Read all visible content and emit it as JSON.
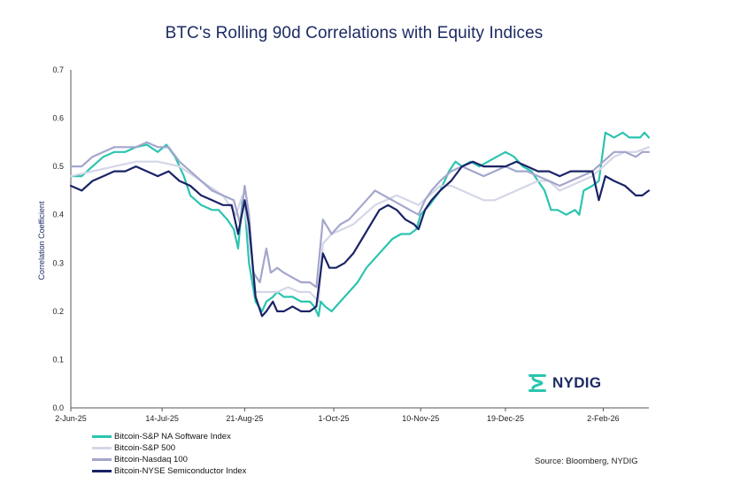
{
  "chart_data": {
    "type": "line",
    "title": "BTC's Rolling 90d Correlations with Equity Indices",
    "ylabel": "Correlation Coefficient",
    "xlabel": "",
    "ylim": [
      0,
      0.7
    ],
    "yticks": [
      "0.0",
      "0.1",
      "0.2",
      "0.3",
      "0.4",
      "0.5",
      "0.6",
      "0.7"
    ],
    "xlim": [
      0,
      266
    ],
    "xticks": [
      {
        "label": "2-Jun-25",
        "day": 0
      },
      {
        "label": "14-Jul-25",
        "day": 42
      },
      {
        "label": "21-Aug-25",
        "day": 80
      },
      {
        "label": "1-Oct-25",
        "day": 121
      },
      {
        "label": "10-Nov-25",
        "day": 161
      },
      {
        "label": "19-Dec-25",
        "day": 200
      },
      {
        "label": "2-Feb-26",
        "day": 245
      }
    ],
    "grid": false,
    "legend_position": "bottom-left",
    "source": "Source: Bloomberg, NYDIG",
    "logo_text": "NYDIG",
    "series": [
      {
        "name": "Bitcoin-S&P NA Software Index",
        "color": "#2bc4b0",
        "points": [
          [
            0,
            0.48
          ],
          [
            5,
            0.48
          ],
          [
            10,
            0.5
          ],
          [
            15,
            0.52
          ],
          [
            20,
            0.53
          ],
          [
            25,
            0.53
          ],
          [
            30,
            0.54
          ],
          [
            35,
            0.545
          ],
          [
            40,
            0.53
          ],
          [
            44,
            0.545
          ],
          [
            48,
            0.52
          ],
          [
            52,
            0.48
          ],
          [
            55,
            0.44
          ],
          [
            60,
            0.42
          ],
          [
            65,
            0.41
          ],
          [
            68,
            0.41
          ],
          [
            72,
            0.39
          ],
          [
            75,
            0.37
          ],
          [
            77,
            0.33
          ],
          [
            79,
            0.43
          ],
          [
            80,
            0.42
          ],
          [
            82,
            0.3
          ],
          [
            85,
            0.22
          ],
          [
            88,
            0.2
          ],
          [
            90,
            0.22
          ],
          [
            93,
            0.23
          ],
          [
            95,
            0.24
          ],
          [
            98,
            0.23
          ],
          [
            102,
            0.23
          ],
          [
            106,
            0.22
          ],
          [
            110,
            0.22
          ],
          [
            112,
            0.21
          ],
          [
            114,
            0.19
          ],
          [
            115,
            0.22
          ],
          [
            117,
            0.21
          ],
          [
            120,
            0.2
          ],
          [
            124,
            0.22
          ],
          [
            128,
            0.24
          ],
          [
            132,
            0.26
          ],
          [
            136,
            0.29
          ],
          [
            140,
            0.31
          ],
          [
            144,
            0.33
          ],
          [
            148,
            0.35
          ],
          [
            152,
            0.36
          ],
          [
            156,
            0.36
          ],
          [
            159,
            0.37
          ],
          [
            161,
            0.4
          ],
          [
            165,
            0.42
          ],
          [
            170,
            0.45
          ],
          [
            174,
            0.49
          ],
          [
            177,
            0.51
          ],
          [
            180,
            0.5
          ],
          [
            184,
            0.51
          ],
          [
            188,
            0.5
          ],
          [
            192,
            0.51
          ],
          [
            196,
            0.52
          ],
          [
            200,
            0.53
          ],
          [
            204,
            0.52
          ],
          [
            208,
            0.5
          ],
          [
            212,
            0.49
          ],
          [
            215,
            0.47
          ],
          [
            218,
            0.45
          ],
          [
            221,
            0.41
          ],
          [
            224,
            0.41
          ],
          [
            228,
            0.4
          ],
          [
            232,
            0.41
          ],
          [
            234,
            0.4
          ],
          [
            236,
            0.45
          ],
          [
            240,
            0.46
          ],
          [
            243,
            0.47
          ],
          [
            246,
            0.57
          ],
          [
            250,
            0.56
          ],
          [
            254,
            0.57
          ],
          [
            257,
            0.56
          ],
          [
            260,
            0.56
          ],
          [
            262,
            0.56
          ],
          [
            264,
            0.57
          ],
          [
            266,
            0.56
          ]
        ]
      },
      {
        "name": "Bitcoin-S&P 500",
        "color": "#d4d6e8",
        "points": [
          [
            0,
            0.48
          ],
          [
            10,
            0.49
          ],
          [
            20,
            0.5
          ],
          [
            30,
            0.51
          ],
          [
            40,
            0.51
          ],
          [
            50,
            0.5
          ],
          [
            60,
            0.47
          ],
          [
            70,
            0.44
          ],
          [
            76,
            0.4
          ],
          [
            79,
            0.44
          ],
          [
            82,
            0.36
          ],
          [
            85,
            0.24
          ],
          [
            90,
            0.24
          ],
          [
            95,
            0.24
          ],
          [
            100,
            0.25
          ],
          [
            105,
            0.24
          ],
          [
            110,
            0.24
          ],
          [
            114,
            0.22
          ],
          [
            116,
            0.34
          ],
          [
            120,
            0.36
          ],
          [
            125,
            0.37
          ],
          [
            130,
            0.38
          ],
          [
            135,
            0.4
          ],
          [
            140,
            0.42
          ],
          [
            145,
            0.43
          ],
          [
            150,
            0.44
          ],
          [
            155,
            0.43
          ],
          [
            160,
            0.42
          ],
          [
            165,
            0.44
          ],
          [
            170,
            0.46
          ],
          [
            175,
            0.46
          ],
          [
            180,
            0.45
          ],
          [
            185,
            0.44
          ],
          [
            190,
            0.43
          ],
          [
            195,
            0.43
          ],
          [
            200,
            0.44
          ],
          [
            205,
            0.45
          ],
          [
            210,
            0.46
          ],
          [
            215,
            0.47
          ],
          [
            220,
            0.47
          ],
          [
            225,
            0.45
          ],
          [
            230,
            0.46
          ],
          [
            235,
            0.47
          ],
          [
            240,
            0.48
          ],
          [
            245,
            0.5
          ],
          [
            250,
            0.52
          ],
          [
            255,
            0.53
          ],
          [
            260,
            0.53
          ],
          [
            266,
            0.54
          ]
        ]
      },
      {
        "name": "Bitcoin-Nasdaq 100",
        "color": "#a3a6cc",
        "points": [
          [
            0,
            0.5
          ],
          [
            5,
            0.5
          ],
          [
            10,
            0.52
          ],
          [
            15,
            0.53
          ],
          [
            20,
            0.54
          ],
          [
            25,
            0.54
          ],
          [
            30,
            0.54
          ],
          [
            35,
            0.55
          ],
          [
            40,
            0.54
          ],
          [
            45,
            0.54
          ],
          [
            50,
            0.51
          ],
          [
            55,
            0.49
          ],
          [
            60,
            0.47
          ],
          [
            65,
            0.45
          ],
          [
            70,
            0.44
          ],
          [
            75,
            0.43
          ],
          [
            78,
            0.38
          ],
          [
            80,
            0.46
          ],
          [
            82,
            0.4
          ],
          [
            84,
            0.28
          ],
          [
            87,
            0.26
          ],
          [
            90,
            0.33
          ],
          [
            92,
            0.28
          ],
          [
            95,
            0.29
          ],
          [
            98,
            0.28
          ],
          [
            102,
            0.27
          ],
          [
            106,
            0.26
          ],
          [
            110,
            0.26
          ],
          [
            113,
            0.25
          ],
          [
            116,
            0.39
          ],
          [
            120,
            0.36
          ],
          [
            124,
            0.38
          ],
          [
            128,
            0.39
          ],
          [
            132,
            0.41
          ],
          [
            136,
            0.43
          ],
          [
            140,
            0.45
          ],
          [
            144,
            0.44
          ],
          [
            148,
            0.43
          ],
          [
            152,
            0.42
          ],
          [
            156,
            0.41
          ],
          [
            160,
            0.4
          ],
          [
            163,
            0.43
          ],
          [
            166,
            0.45
          ],
          [
            170,
            0.47
          ],
          [
            175,
            0.49
          ],
          [
            180,
            0.5
          ],
          [
            185,
            0.49
          ],
          [
            190,
            0.48
          ],
          [
            195,
            0.49
          ],
          [
            200,
            0.5
          ],
          [
            205,
            0.49
          ],
          [
            210,
            0.49
          ],
          [
            215,
            0.48
          ],
          [
            220,
            0.47
          ],
          [
            225,
            0.46
          ],
          [
            230,
            0.47
          ],
          [
            235,
            0.48
          ],
          [
            240,
            0.49
          ],
          [
            245,
            0.51
          ],
          [
            250,
            0.53
          ],
          [
            255,
            0.53
          ],
          [
            260,
            0.52
          ],
          [
            263,
            0.53
          ],
          [
            266,
            0.53
          ]
        ]
      },
      {
        "name": "Bitcoin-NYSE Semiconductor Index",
        "color": "#1a2366",
        "points": [
          [
            0,
            0.46
          ],
          [
            5,
            0.45
          ],
          [
            10,
            0.47
          ],
          [
            15,
            0.48
          ],
          [
            20,
            0.49
          ],
          [
            25,
            0.49
          ],
          [
            30,
            0.5
          ],
          [
            35,
            0.49
          ],
          [
            40,
            0.48
          ],
          [
            45,
            0.49
          ],
          [
            50,
            0.47
          ],
          [
            55,
            0.46
          ],
          [
            60,
            0.44
          ],
          [
            65,
            0.43
          ],
          [
            70,
            0.42
          ],
          [
            74,
            0.42
          ],
          [
            77,
            0.36
          ],
          [
            80,
            0.43
          ],
          [
            82,
            0.38
          ],
          [
            85,
            0.23
          ],
          [
            88,
            0.19
          ],
          [
            90,
            0.2
          ],
          [
            93,
            0.22
          ],
          [
            95,
            0.2
          ],
          [
            98,
            0.2
          ],
          [
            102,
            0.21
          ],
          [
            106,
            0.2
          ],
          [
            110,
            0.2
          ],
          [
            113,
            0.21
          ],
          [
            116,
            0.32
          ],
          [
            119,
            0.29
          ],
          [
            122,
            0.29
          ],
          [
            126,
            0.3
          ],
          [
            130,
            0.32
          ],
          [
            134,
            0.35
          ],
          [
            138,
            0.38
          ],
          [
            142,
            0.41
          ],
          [
            146,
            0.42
          ],
          [
            150,
            0.41
          ],
          [
            154,
            0.39
          ],
          [
            158,
            0.38
          ],
          [
            160,
            0.37
          ],
          [
            163,
            0.41
          ],
          [
            166,
            0.43
          ],
          [
            170,
            0.45
          ],
          [
            175,
            0.47
          ],
          [
            180,
            0.5
          ],
          [
            185,
            0.51
          ],
          [
            190,
            0.5
          ],
          [
            195,
            0.5
          ],
          [
            200,
            0.5
          ],
          [
            205,
            0.51
          ],
          [
            210,
            0.5
          ],
          [
            215,
            0.49
          ],
          [
            220,
            0.49
          ],
          [
            225,
            0.48
          ],
          [
            230,
            0.49
          ],
          [
            235,
            0.49
          ],
          [
            240,
            0.49
          ],
          [
            243,
            0.43
          ],
          [
            246,
            0.48
          ],
          [
            250,
            0.47
          ],
          [
            255,
            0.46
          ],
          [
            260,
            0.44
          ],
          [
            263,
            0.44
          ],
          [
            266,
            0.45
          ]
        ]
      }
    ]
  }
}
